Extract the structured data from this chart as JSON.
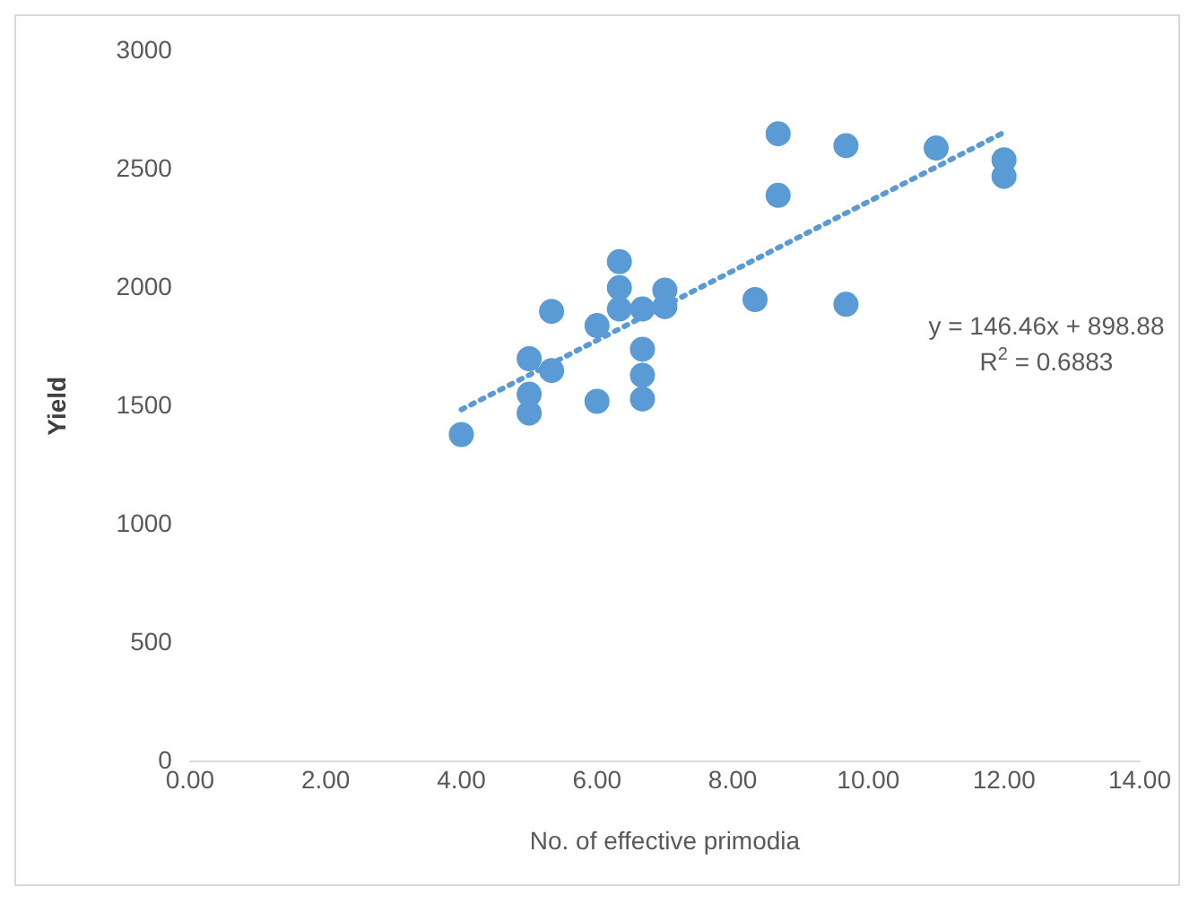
{
  "chart_data": {
    "type": "scatter",
    "xlabel": "No. of effective primodia",
    "ylabel": "Yield",
    "series": [
      {
        "type": "scatter",
        "color": "#5b9bd5",
        "x": [
          4,
          5,
          5,
          5,
          5.33,
          5.33,
          6,
          6,
          6.33,
          6.33,
          6.33,
          6.67,
          6.67,
          6.67,
          6.67,
          7,
          7,
          8.33,
          8.67,
          8.67,
          9.67,
          9.67,
          11,
          12,
          12
        ],
        "values": [
          1380,
          1700,
          1550,
          1470,
          1900,
          1650,
          1840,
          1520,
          2110,
          2000,
          1910,
          1910,
          1740,
          1630,
          1530,
          1990,
          1920,
          1950,
          2650,
          2390,
          2600,
          1930,
          2590,
          2540,
          2470
        ]
      },
      {
        "type": "line",
        "color": "#5b9bd5",
        "line_style": "dotted",
        "marker": "none",
        "x": [
          4,
          12
        ],
        "values": [
          1485,
          2656
        ]
      }
    ],
    "annotations": [
      "y = 146.46x + 898.88",
      "R$^{2}$ = 0.6883"
    ],
    "xlim": [
      0,
      14
    ],
    "xticks": [
      {
        "value": 0,
        "label": "0.00"
      },
      {
        "value": 2,
        "label": "2.00"
      },
      {
        "value": 4,
        "label": "4.00"
      },
      {
        "value": 6,
        "label": "6.00"
      },
      {
        "value": 8,
        "label": "8.00"
      },
      {
        "value": 10,
        "label": "10.00"
      },
      {
        "value": 12,
        "label": "12.00"
      },
      {
        "value": 14,
        "label": "14.00"
      }
    ],
    "ylim": [
      0,
      3000
    ],
    "yticks": [
      0,
      500,
      1000,
      1500,
      2000,
      2500,
      3000
    ],
    "grid": false,
    "legend": false,
    "marker": "circle"
  }
}
